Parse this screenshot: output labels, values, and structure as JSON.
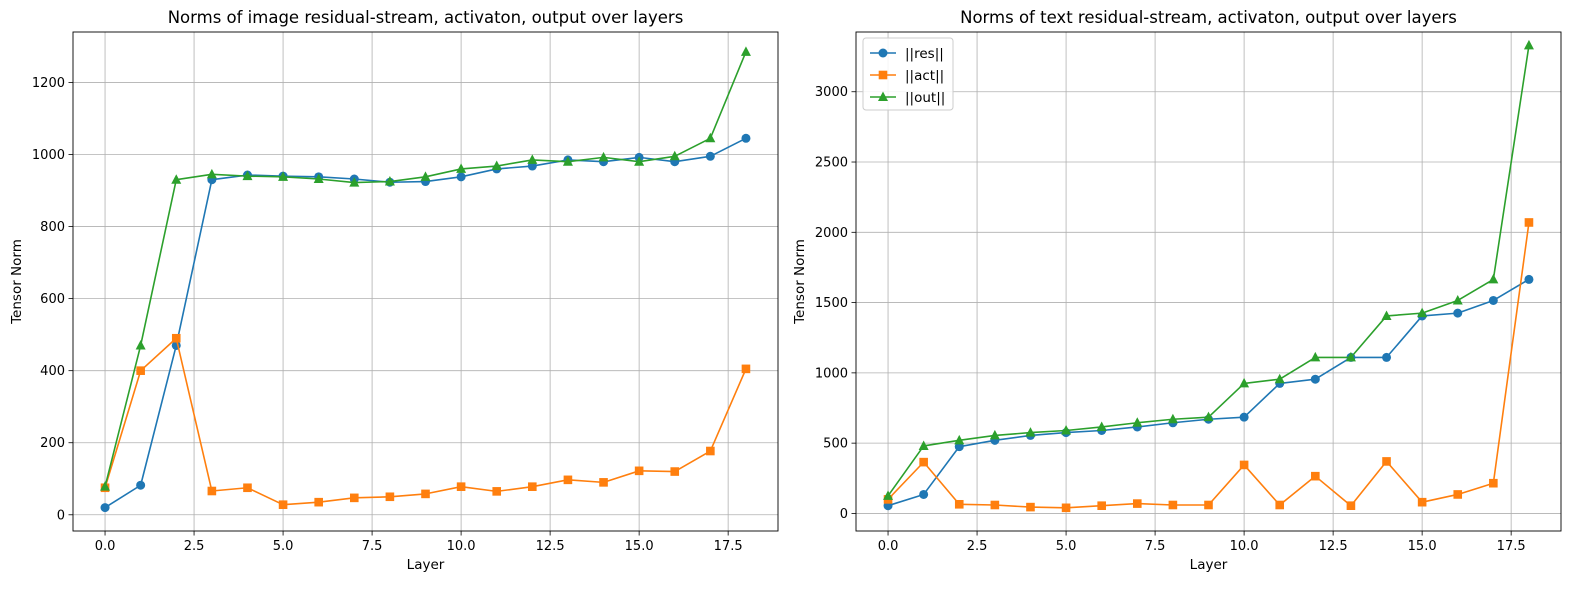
{
  "chart_data": [
    {
      "type": "line",
      "title": "Norms of image residual-stream, activaton, output over layers",
      "xlabel": "Layer",
      "ylabel": "Tensor Norm",
      "xlim": [
        -0.9,
        18.9
      ],
      "ylim": [
        -45,
        1340
      ],
      "xticks": [
        0,
        2.5,
        5,
        7.5,
        10,
        12.5,
        15,
        17.5
      ],
      "xtick_labels": [
        "0.0",
        "2.5",
        "5.0",
        "7.5",
        "10.0",
        "12.5",
        "15.0",
        "17.5"
      ],
      "yticks": [
        0,
        200,
        400,
        600,
        800,
        1000,
        1200
      ],
      "ytick_labels": [
        "0",
        "200",
        "400",
        "600",
        "800",
        "1000",
        "1200"
      ],
      "grid": true,
      "x": [
        0,
        1,
        2,
        3,
        4,
        5,
        6,
        7,
        8,
        9,
        10,
        11,
        12,
        13,
        14,
        15,
        16,
        17,
        18
      ],
      "series": [
        {
          "key": "res",
          "color": "#1f77b4",
          "marker": "circle",
          "values": [
            20,
            82,
            470,
            930,
            943,
            940,
            938,
            932,
            923,
            925,
            938,
            960,
            968,
            985,
            980,
            992,
            980,
            995,
            1045
          ]
        },
        {
          "key": "act",
          "color": "#ff7f0e",
          "marker": "square",
          "values": [
            75,
            400,
            490,
            66,
            75,
            28,
            35,
            47,
            50,
            58,
            78,
            65,
            78,
            97,
            90,
            122,
            120,
            177,
            405
          ]
        },
        {
          "key": "out",
          "color": "#2ca02c",
          "marker": "triangle",
          "values": [
            78,
            470,
            930,
            945,
            940,
            938,
            932,
            922,
            925,
            938,
            960,
            968,
            985,
            980,
            992,
            980,
            995,
            1045,
            1285
          ]
        }
      ]
    },
    {
      "type": "line",
      "title": "Norms of text residual-stream, activaton, output over layers",
      "xlabel": "Layer",
      "ylabel": "Tensor Norm",
      "xlim": [
        -0.9,
        18.9
      ],
      "ylim": [
        -125,
        3425
      ],
      "xticks": [
        0,
        2.5,
        5,
        7.5,
        10,
        12.5,
        15,
        17.5
      ],
      "xtick_labels": [
        "0.0",
        "2.5",
        "5.0",
        "7.5",
        "10.0",
        "12.5",
        "15.0",
        "17.5"
      ],
      "yticks": [
        0,
        500,
        1000,
        1500,
        2000,
        2500,
        3000
      ],
      "ytick_labels": [
        "0",
        "500",
        "1000",
        "1500",
        "2000",
        "2500",
        "3000"
      ],
      "grid": true,
      "legend": {
        "position": "top-left",
        "entries": [
          "||res||",
          "||act||",
          "||out||"
        ]
      },
      "x": [
        0,
        1,
        2,
        3,
        4,
        5,
        6,
        7,
        8,
        9,
        10,
        11,
        12,
        13,
        14,
        15,
        16,
        17,
        18
      ],
      "series": [
        {
          "name": "||res||",
          "color": "#1f77b4",
          "marker": "circle",
          "values": [
            55,
            135,
            475,
            520,
            555,
            575,
            590,
            615,
            645,
            670,
            685,
            925,
            955,
            1110,
            1110,
            1405,
            1425,
            1515,
            1665
          ]
        },
        {
          "name": "||act||",
          "color": "#ff7f0e",
          "marker": "square",
          "values": [
            100,
            365,
            65,
            60,
            45,
            40,
            55,
            70,
            60,
            60,
            345,
            60,
            265,
            55,
            370,
            80,
            135,
            215,
            2070
          ]
        },
        {
          "name": "||out||",
          "color": "#2ca02c",
          "marker": "triangle",
          "values": [
            125,
            480,
            520,
            555,
            575,
            590,
            615,
            645,
            670,
            685,
            925,
            955,
            1110,
            1110,
            1405,
            1425,
            1515,
            1665,
            3330
          ]
        }
      ]
    }
  ]
}
